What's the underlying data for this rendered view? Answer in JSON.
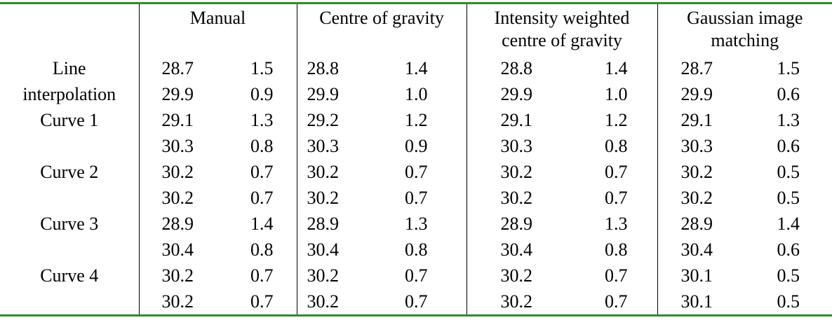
{
  "header": {
    "row_label": null,
    "columns": [
      [
        "Manual"
      ],
      [
        "Centre of gravity"
      ],
      [
        "Intensity weighted",
        "centre of gravity"
      ],
      [
        "Gaussian image",
        "matching"
      ]
    ]
  },
  "groups": [
    {
      "label": [
        "Line",
        "interpolation"
      ],
      "rows": [
        [
          "28.7",
          "1.5",
          "28.8",
          "1.4",
          "28.8",
          "1.4",
          "28.7",
          "1.5"
        ],
        [
          "29.9",
          "0.9",
          "29.9",
          "1.0",
          "29.9",
          "1.0",
          "29.9",
          "0.6"
        ]
      ]
    },
    {
      "label": [
        "Curve 1"
      ],
      "rows": [
        [
          "29.1",
          "1.3",
          "29.2",
          "1.2",
          "29.1",
          "1.2",
          "29.1",
          "1.3"
        ],
        [
          "30.3",
          "0.8",
          "30.3",
          "0.9",
          "30.3",
          "0.8",
          "30.3",
          "0.6"
        ]
      ]
    },
    {
      "label": [
        "Curve 2"
      ],
      "rows": [
        [
          "30.2",
          "0.7",
          "30.2",
          "0.7",
          "30.2",
          "0.7",
          "30.2",
          "0.5"
        ],
        [
          "30.2",
          "0.7",
          "30.2",
          "0.7",
          "30.2",
          "0.7",
          "30.2",
          "0.5"
        ]
      ]
    },
    {
      "label": [
        "Curve 3"
      ],
      "rows": [
        [
          "28.9",
          "1.4",
          "28.9",
          "1.3",
          "28.9",
          "1.3",
          "28.9",
          "1.4"
        ],
        [
          "30.4",
          "0.8",
          "30.4",
          "0.8",
          "30.4",
          "0.8",
          "30.4",
          "0.6"
        ]
      ]
    },
    {
      "label": [
        "Curve 4"
      ],
      "rows": [
        [
          "30.2",
          "0.7",
          "30.2",
          "0.7",
          "30.2",
          "0.7",
          "30.1",
          "0.5"
        ],
        [
          "30.2",
          "0.7",
          "30.2",
          "0.7",
          "30.2",
          "0.7",
          "30.1",
          "0.5"
        ]
      ]
    }
  ]
}
